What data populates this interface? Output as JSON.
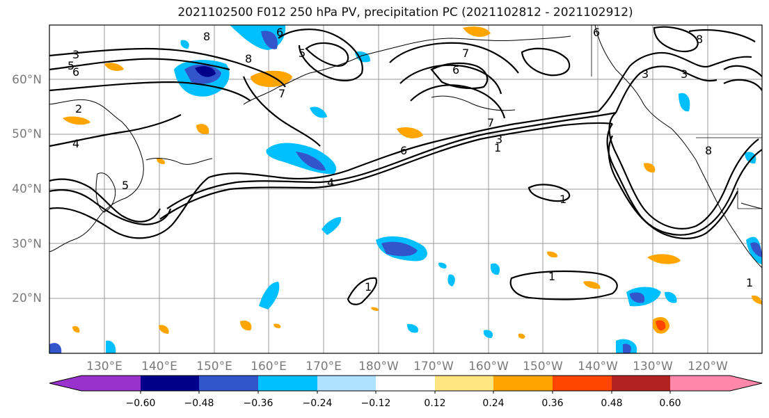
{
  "title": "2021102500 F012 250 hPa PV, precipitation PC (2021102812 - 2021102912)",
  "map": {
    "lat_labels": [
      "60°N",
      "50°N",
      "40°N",
      "30°N",
      "20°N"
    ],
    "lon_labels": [
      "130°E",
      "140°E",
      "150°E",
      "160°E",
      "170°E",
      "180°W",
      "170°W",
      "160°W",
      "150°W",
      "140°W",
      "130°W",
      "120°W"
    ],
    "contour_labels": [
      "3",
      "5",
      "6",
      "8",
      "2",
      "4",
      "5",
      "6",
      "8",
      "7",
      "5",
      "7",
      "6",
      "7",
      "3",
      "1",
      "6",
      "4",
      "1",
      "1",
      "1",
      "3",
      "3",
      "8",
      "1",
      "6",
      "8"
    ]
  },
  "colorbar": {
    "tick_labels": [
      "−0.60",
      "−0.48",
      "−0.36",
      "−0.24",
      "−0.12",
      "0.12",
      "0.24",
      "0.36",
      "0.48",
      "0.60"
    ],
    "colors": [
      "#9932cc",
      "#00008b",
      "#3355cc",
      "#00bfff",
      "#b0e0ff",
      "#ffffff",
      "#ffe680",
      "#ffa500",
      "#ff4500",
      "#b22222",
      "#ff88aa"
    ]
  }
}
